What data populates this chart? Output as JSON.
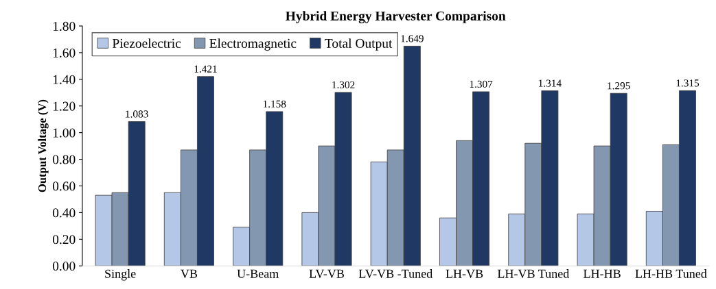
{
  "chart_data": {
    "type": "bar",
    "title": "Hybrid Energy Harvester Comparison",
    "ylabel": "Output Voltage (V)",
    "categories": [
      "Single",
      "VB",
      "U-Beam",
      "LV-VB",
      "LV-VB -Tuned",
      "LH-VB",
      "LH-VB Tuned",
      "LH-HB",
      "LH-HB Tuned"
    ],
    "series": [
      {
        "name": "Piezoelectric",
        "color": "#b4c7e7",
        "values": [
          0.53,
          0.55,
          0.29,
          0.4,
          0.78,
          0.36,
          0.39,
          0.39,
          0.41
        ]
      },
      {
        "name": "Electromagnetic",
        "color": "#8497b0",
        "values": [
          0.55,
          0.87,
          0.87,
          0.9,
          0.87,
          0.94,
          0.92,
          0.9,
          0.91
        ]
      },
      {
        "name": "Total Output",
        "color": "#203864",
        "values": [
          1.083,
          1.421,
          1.158,
          1.302,
          1.649,
          1.307,
          1.314,
          1.295,
          1.315
        ],
        "value_labels": [
          "1.083",
          "1.421",
          "1.158",
          "1.302",
          "1.649",
          "1.307",
          "1.314",
          "1.295",
          "1.315"
        ]
      }
    ],
    "ylim": [
      0,
      1.8
    ],
    "yticks": [
      {
        "value": 0,
        "label": "0.00"
      },
      {
        "value": 0.2,
        "label": "0.20"
      },
      {
        "value": 0.4,
        "label": "0.40"
      },
      {
        "value": 0.6,
        "label": "0.60"
      },
      {
        "value": 0.8,
        "label": "0.80"
      },
      {
        "value": 1.0,
        "label": "1.00"
      },
      {
        "value": 1.2,
        "label": "1.20"
      },
      {
        "value": 1.4,
        "label": "1.40"
      },
      {
        "value": 1.6,
        "label": "1.60"
      },
      {
        "value": 1.8,
        "label": "1.80"
      }
    ],
    "legend": "top left",
    "grid": false
  }
}
